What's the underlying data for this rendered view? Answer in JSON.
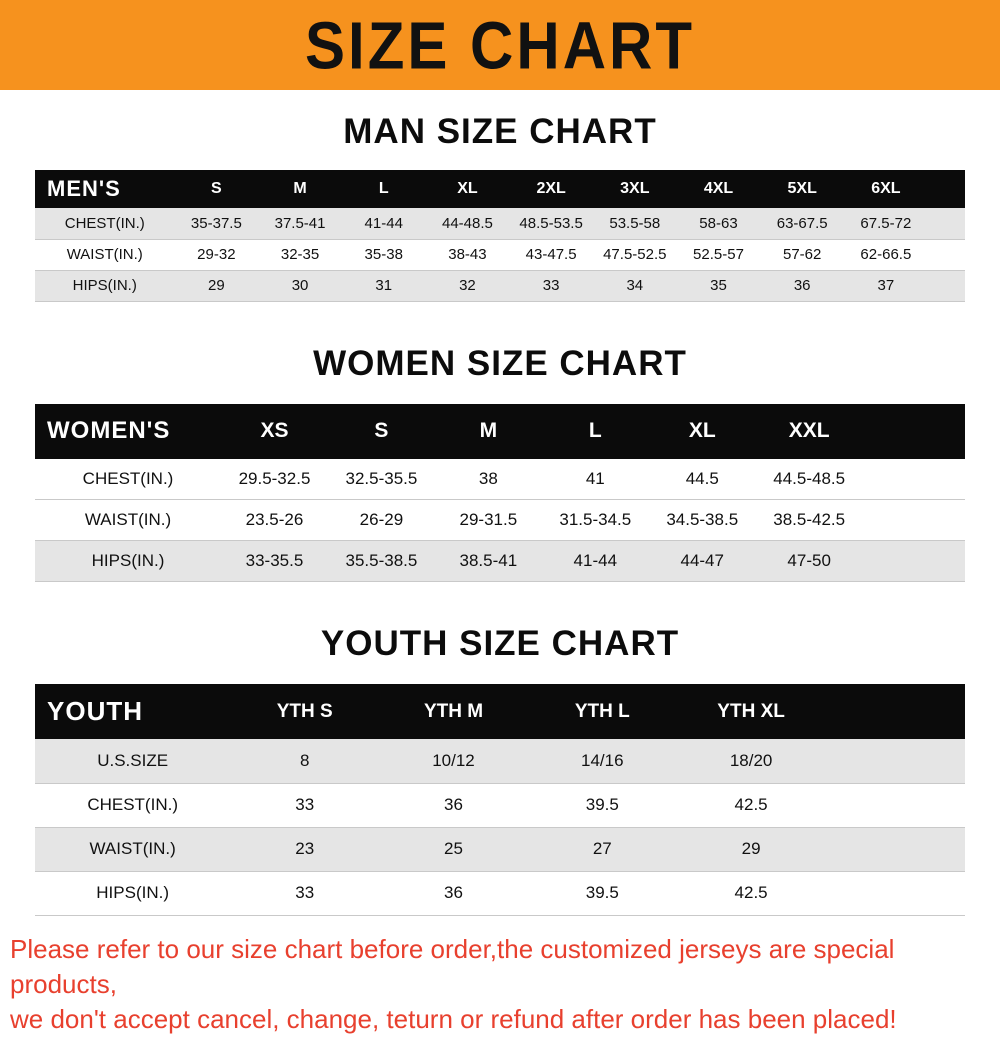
{
  "banner": {
    "title": "SIZE CHART"
  },
  "colors": {
    "page_bg": "#FFFFFF",
    "banner_bg": "#F6921E",
    "banner_text": "#111111",
    "table_header_bg": "#0B0B0B",
    "table_header_text": "#FFFFFF",
    "row_stripe": "#E5E5E5",
    "row_line": "#C9C9C9",
    "footer_text": "#E8402E",
    "body_text": "#111111"
  },
  "sections": [
    {
      "id": "men",
      "heading": "MAN SIZE CHART",
      "table": {
        "header": [
          "MEN'S",
          "S",
          "M",
          "L",
          "XL",
          "2XL",
          "3XL",
          "4XL",
          "5XL",
          "6XL"
        ],
        "rows": [
          [
            "CHEST(IN.)",
            "35-37.5",
            "37.5-41",
            "41-44",
            "44-48.5",
            "48.5-53.5",
            "53.5-58",
            "58-63",
            "63-67.5",
            "67.5-72"
          ],
          [
            "WAIST(IN.)",
            "29-32",
            "32-35",
            "35-38",
            "38-43",
            "43-47.5",
            "47.5-52.5",
            "52.5-57",
            "57-62",
            "62-66.5"
          ],
          [
            "HIPS(IN.)",
            "29",
            "30",
            "31",
            "32",
            "33",
            "34",
            "35",
            "36",
            "37"
          ]
        ]
      }
    },
    {
      "id": "women",
      "heading": "WOMEN SIZE CHART",
      "table": {
        "header": [
          "WOMEN'S",
          "XS",
          "S",
          "M",
          "L",
          "XL",
          "XXL"
        ],
        "rows": [
          [
            "CHEST(IN.)",
            "29.5-32.5",
            "32.5-35.5",
            "38",
            "41",
            "44.5",
            "44.5-48.5"
          ],
          [
            "WAIST(IN.)",
            "23.5-26",
            "26-29",
            "29-31.5",
            "31.5-34.5",
            "34.5-38.5",
            "38.5-42.5"
          ],
          [
            "HIPS(IN.)",
            "33-35.5",
            "35.5-38.5",
            "38.5-41",
            "41-44",
            "44-47",
            "47-50"
          ]
        ]
      }
    },
    {
      "id": "youth",
      "heading": "YOUTH SIZE CHART",
      "table": {
        "header": [
          "YOUTH",
          "YTH S",
          "YTH M",
          "YTH L",
          "YTH XL"
        ],
        "rows": [
          [
            "U.S.SIZE",
            "8",
            "10/12",
            "14/16",
            "18/20"
          ],
          [
            "CHEST(IN.)",
            "33",
            "36",
            "39.5",
            "42.5"
          ],
          [
            "WAIST(IN.)",
            "23",
            "25",
            "27",
            "29"
          ],
          [
            "HIPS(IN.)",
            "33",
            "36",
            "39.5",
            "42.5"
          ]
        ]
      }
    }
  ],
  "footer": {
    "line1": "Please refer to our size chart before order,the customized jerseys are special products,",
    "line2": "we don't accept cancel, change, teturn or refund after order has been placed!"
  }
}
